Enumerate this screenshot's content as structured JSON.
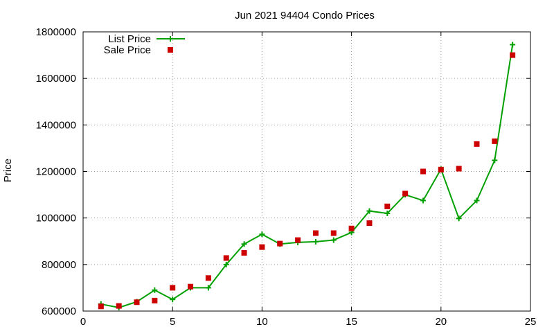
{
  "chart_data": {
    "type": "line",
    "title": "Jun 2021 94404 Condo Prices",
    "xlabel": "",
    "ylabel": "Price",
    "xlim": [
      0,
      25
    ],
    "ylim": [
      600000,
      1800000
    ],
    "x_ticks": [
      0,
      5,
      10,
      15,
      20,
      25
    ],
    "y_ticks": [
      600000,
      800000,
      1000000,
      1200000,
      1400000,
      1600000,
      1800000
    ],
    "x_tick_labels": [
      "0",
      "5",
      "10",
      "15",
      "20",
      "25"
    ],
    "y_tick_labels": [
      "600000",
      "800000",
      "1000000",
      "1200000",
      "1400000",
      "1600000",
      "1800000"
    ],
    "grid": true,
    "legend_position": "top-left",
    "series": [
      {
        "name": "List Price",
        "kind": "line-with-markers",
        "marker": "plus",
        "color": "#00a000",
        "x": [
          1,
          2,
          3,
          4,
          5,
          6,
          7,
          8,
          9,
          10,
          11,
          12,
          13,
          14,
          15,
          16,
          17,
          18,
          19,
          20,
          21,
          22,
          23,
          24
        ],
        "values": [
          630000,
          615000,
          640000,
          690000,
          650000,
          700000,
          700000,
          800000,
          888000,
          930000,
          888000,
          895000,
          898000,
          905000,
          938000,
          1030000,
          1020000,
          1100000,
          1075000,
          1210000,
          998000,
          1075000,
          1248000,
          1745000
        ]
      },
      {
        "name": "Sale Price",
        "kind": "scatter",
        "marker": "square",
        "color": "#cc0000",
        "x": [
          1,
          2,
          3,
          4,
          5,
          6,
          7,
          8,
          9,
          10,
          11,
          12,
          13,
          14,
          15,
          16,
          17,
          18,
          19,
          20,
          21,
          22,
          23,
          24
        ],
        "values": [
          620000,
          622000,
          638000,
          645000,
          700000,
          705000,
          742000,
          828000,
          850000,
          875000,
          890000,
          905000,
          935000,
          935000,
          955000,
          978000,
          1050000,
          1105000,
          1200000,
          1208000,
          1212000,
          1318000,
          1330000,
          1700000
        ]
      }
    ]
  }
}
